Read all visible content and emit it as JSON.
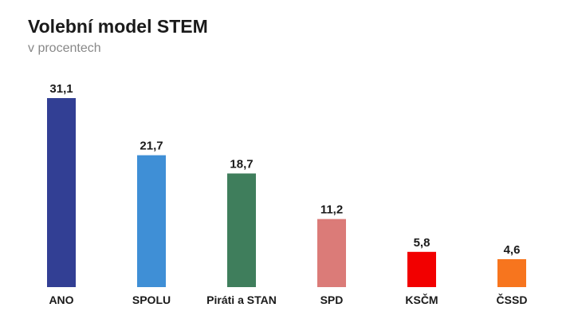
{
  "title": "Volební model STEM",
  "subtitle": "v procentech",
  "chart_data": {
    "type": "bar",
    "title": "Volební model STEM",
    "subtitle": "v procentech",
    "categories": [
      "ANO",
      "SPOLU",
      "Piráti a STAN",
      "SPD",
      "KSČM",
      "ČSSD"
    ],
    "values": [
      31.1,
      21.7,
      18.7,
      11.2,
      5.8,
      4.6
    ],
    "value_labels": [
      "31,1",
      "21,7",
      "18,7",
      "11,2",
      "5,8",
      "4,6"
    ],
    "colors": [
      "#323f94",
      "#3f8fd6",
      "#3f7e5c",
      "#db7b78",
      "#f20000",
      "#f7751e"
    ],
    "ylim": [
      0,
      31.1
    ],
    "grid": false,
    "legend": "none"
  }
}
